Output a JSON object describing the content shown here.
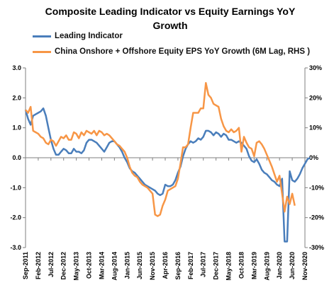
{
  "chart_data": {
    "type": "line",
    "title": "Composite Leading Indicator vs Equity Earnings YoY Growth",
    "y_left": {
      "min": -3.0,
      "max": 3.0,
      "ticks": [
        "-3.0",
        "-2.0",
        "-1.0",
        "0.0",
        "1.0",
        "2.0",
        "3.0"
      ]
    },
    "y_right": {
      "min": -30,
      "max": 30,
      "ticks": [
        "-30%",
        "-20%",
        "-10%",
        "0%",
        "10%",
        "20%",
        "30%"
      ]
    },
    "x_range": [
      "2011-09",
      "2020-11"
    ],
    "x_ticks": [
      "Sep-2011",
      "Feb-2012",
      "Jul-2012",
      "Dec-2012",
      "May-2013",
      "Oct-2013",
      "Mar-2014",
      "Aug-2014",
      "Jan-2015",
      "Jun-2015",
      "Nov-2015",
      "Apr-2016",
      "Sep-2016",
      "Feb-2017",
      "Jul-2017",
      "Dec-2017",
      "May-2018",
      "Oct-2018",
      "Mar-2019",
      "Aug-2019",
      "Jan-2020",
      "Jun-2020",
      "Nov-2020"
    ],
    "grid": false,
    "legend_placement": "top-left",
    "series": [
      {
        "name": "Leading Indicator",
        "axis": "left",
        "color": "#4a7ebb",
        "points": [
          [
            "2011-09",
            1.6
          ],
          [
            "2011-10",
            1.3
          ],
          [
            "2011-11",
            1.1
          ],
          [
            "2011-12",
            1.4
          ],
          [
            "2012-01",
            1.45
          ],
          [
            "2012-02",
            1.5
          ],
          [
            "2012-03",
            1.55
          ],
          [
            "2012-04",
            1.65
          ],
          [
            "2012-05",
            1.4
          ],
          [
            "2012-06",
            1.0
          ],
          [
            "2012-07",
            0.6
          ],
          [
            "2012-08",
            0.3
          ],
          [
            "2012-09",
            0.1
          ],
          [
            "2012-10",
            0.1
          ],
          [
            "2012-11",
            0.2
          ],
          [
            "2012-12",
            0.3
          ],
          [
            "2013-01",
            0.25
          ],
          [
            "2013-02",
            0.15
          ],
          [
            "2013-03",
            0.15
          ],
          [
            "2013-04",
            0.3
          ],
          [
            "2013-05",
            0.2
          ],
          [
            "2013-06",
            0.2
          ],
          [
            "2013-07",
            0.15
          ],
          [
            "2013-08",
            0.25
          ],
          [
            "2013-09",
            0.5
          ],
          [
            "2013-10",
            0.6
          ],
          [
            "2013-11",
            0.6
          ],
          [
            "2013-12",
            0.55
          ],
          [
            "2014-01",
            0.5
          ],
          [
            "2014-02",
            0.4
          ],
          [
            "2014-03",
            0.3
          ],
          [
            "2014-04",
            0.2
          ],
          [
            "2014-05",
            0.35
          ],
          [
            "2014-06",
            0.5
          ],
          [
            "2014-07",
            0.55
          ],
          [
            "2014-08",
            0.55
          ],
          [
            "2014-09",
            0.45
          ],
          [
            "2014-10",
            0.35
          ],
          [
            "2014-11",
            0.2
          ],
          [
            "2014-12",
            0.0
          ],
          [
            "2015-01",
            -0.15
          ],
          [
            "2015-02",
            -0.35
          ],
          [
            "2015-03",
            -0.45
          ],
          [
            "2015-04",
            -0.5
          ],
          [
            "2015-05",
            -0.6
          ],
          [
            "2015-06",
            -0.7
          ],
          [
            "2015-07",
            -0.8
          ],
          [
            "2015-08",
            -0.9
          ],
          [
            "2015-09",
            -0.95
          ],
          [
            "2015-10",
            -1.0
          ],
          [
            "2015-11",
            -1.05
          ],
          [
            "2015-12",
            -1.1
          ],
          [
            "2016-01",
            -1.2
          ],
          [
            "2016-02",
            -1.25
          ],
          [
            "2016-03",
            -1.2
          ],
          [
            "2016-04",
            -0.9
          ],
          [
            "2016-05",
            -0.95
          ],
          [
            "2016-06",
            -0.95
          ],
          [
            "2016-07",
            -0.9
          ],
          [
            "2016-08",
            -0.75
          ],
          [
            "2016-09",
            -0.5
          ],
          [
            "2016-10",
            -0.3
          ],
          [
            "2016-11",
            0.05
          ],
          [
            "2016-12",
            0.3
          ],
          [
            "2017-01",
            0.45
          ],
          [
            "2017-02",
            0.55
          ],
          [
            "2017-03",
            0.5
          ],
          [
            "2017-04",
            0.55
          ],
          [
            "2017-05",
            0.65
          ],
          [
            "2017-06",
            0.6
          ],
          [
            "2017-07",
            0.7
          ],
          [
            "2017-08",
            0.9
          ],
          [
            "2017-09",
            0.9
          ],
          [
            "2017-10",
            0.85
          ],
          [
            "2017-11",
            0.75
          ],
          [
            "2017-12",
            0.85
          ],
          [
            "2018-01",
            0.8
          ],
          [
            "2018-02",
            0.7
          ],
          [
            "2018-03",
            0.8
          ],
          [
            "2018-04",
            0.75
          ],
          [
            "2018-05",
            0.6
          ],
          [
            "2018-06",
            0.6
          ],
          [
            "2018-07",
            0.55
          ],
          [
            "2018-08",
            0.5
          ],
          [
            "2018-09",
            0.55
          ],
          [
            "2018-10",
            0.5
          ],
          [
            "2018-11",
            0.4
          ],
          [
            "2018-12",
            0.3
          ],
          [
            "2019-01",
            0.05
          ],
          [
            "2019-02",
            -0.1
          ],
          [
            "2019-03",
            -0.15
          ],
          [
            "2019-04",
            -0.05
          ],
          [
            "2019-05",
            -0.2
          ],
          [
            "2019-06",
            -0.4
          ],
          [
            "2019-07",
            -0.5
          ],
          [
            "2019-08",
            -0.55
          ],
          [
            "2019-09",
            -0.65
          ],
          [
            "2019-10",
            -0.75
          ],
          [
            "2019-11",
            -0.8
          ],
          [
            "2019-12",
            -0.9
          ],
          [
            "2020-01",
            -0.95
          ],
          [
            "2020-02",
            -0.7
          ],
          [
            "2020-03",
            -2.8
          ],
          [
            "2020-04",
            -2.8
          ],
          [
            "2020-05",
            -0.45
          ],
          [
            "2020-06",
            -0.75
          ],
          [
            "2020-07",
            -0.8
          ],
          [
            "2020-08",
            -0.7
          ],
          [
            "2020-09",
            -0.55
          ],
          [
            "2020-10",
            -0.35
          ],
          [
            "2020-11",
            -0.2
          ],
          [
            "2020-12",
            -0.05
          ],
          [
            "2021-01",
            0.0
          ]
        ]
      },
      {
        "name": "China Onshore + Offshore Equity EPS YoY Growth (6M Lag, RHS )",
        "axis": "right",
        "color": "#f79646",
        "points": [
          [
            "2011-09",
            16.0
          ],
          [
            "2011-10",
            15.0
          ],
          [
            "2011-11",
            17.0
          ],
          [
            "2011-12",
            9.0
          ],
          [
            "2012-01",
            8.5
          ],
          [
            "2012-02",
            8.0
          ],
          [
            "2012-03",
            7.0
          ],
          [
            "2012-04",
            6.5
          ],
          [
            "2012-05",
            5.0
          ],
          [
            "2012-06",
            4.5
          ],
          [
            "2012-07",
            6.0
          ],
          [
            "2012-08",
            5.5
          ],
          [
            "2012-09",
            4.0
          ],
          [
            "2012-10",
            5.5
          ],
          [
            "2012-11",
            7.0
          ],
          [
            "2012-12",
            6.5
          ],
          [
            "2013-01",
            7.5
          ],
          [
            "2013-02",
            6.0
          ],
          [
            "2013-03",
            6.0
          ],
          [
            "2013-04",
            8.5
          ],
          [
            "2013-05",
            8.0
          ],
          [
            "2013-06",
            6.5
          ],
          [
            "2013-07",
            8.5
          ],
          [
            "2013-08",
            7.5
          ],
          [
            "2013-09",
            9.0
          ],
          [
            "2013-10",
            8.5
          ],
          [
            "2013-11",
            8.0
          ],
          [
            "2013-12",
            9.0
          ],
          [
            "2014-01",
            7.5
          ],
          [
            "2014-02",
            9.0
          ],
          [
            "2014-03",
            8.5
          ],
          [
            "2014-04",
            7.5
          ],
          [
            "2014-05",
            8.0
          ],
          [
            "2014-06",
            7.5
          ],
          [
            "2014-07",
            6.5
          ],
          [
            "2014-08",
            5.5
          ],
          [
            "2014-09",
            4.5
          ],
          [
            "2014-10",
            4.0
          ],
          [
            "2014-11",
            3.0
          ],
          [
            "2014-12",
            2.0
          ],
          [
            "2015-01",
            0.0
          ],
          [
            "2015-02",
            -3.0
          ],
          [
            "2015-03",
            -5.0
          ],
          [
            "2015-04",
            -6.0
          ],
          [
            "2015-05",
            -6.5
          ],
          [
            "2015-06",
            -8.0
          ],
          [
            "2015-07",
            -9.0
          ],
          [
            "2015-08",
            -9.5
          ],
          [
            "2015-09",
            -10.0
          ],
          [
            "2015-10",
            -11.0
          ],
          [
            "2015-11",
            -12.0
          ],
          [
            "2015-12",
            -19.0
          ],
          [
            "2016-01",
            -19.5
          ],
          [
            "2016-02",
            -19.0
          ],
          [
            "2016-03",
            -16.0
          ],
          [
            "2016-04",
            -14.0
          ],
          [
            "2016-05",
            -11.0
          ],
          [
            "2016-06",
            -10.5
          ],
          [
            "2016-07",
            -10.0
          ],
          [
            "2016-08",
            -9.5
          ],
          [
            "2016-09",
            -7.0
          ],
          [
            "2016-10",
            -2.0
          ],
          [
            "2016-11",
            3.5
          ],
          [
            "2016-12",
            3.5
          ],
          [
            "2017-01",
            4.5
          ],
          [
            "2017-02",
            10.0
          ],
          [
            "2017-03",
            15.0
          ],
          [
            "2017-04",
            15.0
          ],
          [
            "2017-05",
            15.0
          ],
          [
            "2017-06",
            16.5
          ],
          [
            "2017-07",
            16.5
          ],
          [
            "2017-08",
            25.0
          ],
          [
            "2017-09",
            21.0
          ],
          [
            "2017-10",
            20.0
          ],
          [
            "2017-11",
            18.0
          ],
          [
            "2017-12",
            17.5
          ],
          [
            "2018-01",
            17.0
          ],
          [
            "2018-02",
            13.0
          ],
          [
            "2018-03",
            10.5
          ],
          [
            "2018-04",
            9.0
          ],
          [
            "2018-05",
            8.5
          ],
          [
            "2018-06",
            9.5
          ],
          [
            "2018-07",
            8.5
          ],
          [
            "2018-08",
            9.0
          ],
          [
            "2018-09",
            10.0
          ],
          [
            "2018-10",
            2.0
          ],
          [
            "2018-11",
            7.0
          ],
          [
            "2018-12",
            5.0
          ],
          [
            "2019-01",
            3.5
          ],
          [
            "2019-02",
            3.0
          ],
          [
            "2019-03",
            0.5
          ],
          [
            "2019-04",
            5.0
          ],
          [
            "2019-05",
            5.5
          ],
          [
            "2019-06",
            4.5
          ],
          [
            "2019-07",
            3.0
          ],
          [
            "2019-08",
            1.0
          ],
          [
            "2019-09",
            -1.0
          ],
          [
            "2019-10",
            -3.0
          ],
          [
            "2019-11",
            -5.5
          ],
          [
            "2019-12",
            -8.0
          ],
          [
            "2020-01",
            -6.0
          ],
          [
            "2020-02",
            -12.0
          ],
          [
            "2020-03",
            -18.0
          ],
          [
            "2020-04",
            -13.0
          ],
          [
            "2020-05",
            -15.5
          ],
          [
            "2020-06",
            -12.0
          ],
          [
            "2020-07",
            -16.0
          ]
        ]
      }
    ]
  }
}
